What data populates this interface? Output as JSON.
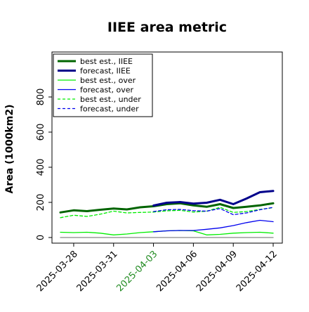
{
  "chart_data": {
    "type": "line",
    "title": "IIEE area metric",
    "xlabel": "",
    "ylabel": "Area (1000km2)",
    "ylim": [
      0,
      1000
    ],
    "yticks": [
      0,
      200,
      400,
      600,
      800
    ],
    "x": [
      "2025-03-27",
      "2025-03-28",
      "2025-03-29",
      "2025-03-30",
      "2025-03-31",
      "2025-04-01",
      "2025-04-02",
      "2025-04-03",
      "2025-04-04",
      "2025-04-05",
      "2025-04-06",
      "2025-04-07",
      "2025-04-08",
      "2025-04-09",
      "2025-04-10",
      "2025-04-11",
      "2025-04-12"
    ],
    "xtick_labels": [
      "2025-03-28",
      "2025-03-31",
      "2025-04-03",
      "2025-04-06",
      "2025-04-09",
      "2025-04-12"
    ],
    "highlighted_tick": "2025-04-03",
    "legend_position": "upper-left",
    "series": [
      {
        "name": "best est., IIEE",
        "color": "#006400",
        "style": "solid",
        "width": 3,
        "x": [
          "2025-03-27",
          "2025-03-28",
          "2025-03-29",
          "2025-03-30",
          "2025-03-31",
          "2025-04-01",
          "2025-04-02",
          "2025-04-03",
          "2025-04-04",
          "2025-04-05",
          "2025-04-06",
          "2025-04-07",
          "2025-04-08",
          "2025-04-09",
          "2025-04-10",
          "2025-04-11",
          "2025-04-12"
        ],
        "values": [
          143,
          155,
          150,
          158,
          165,
          160,
          172,
          178,
          190,
          195,
          183,
          175,
          190,
          168,
          175,
          183,
          195
        ]
      },
      {
        "name": "forecast, IIEE",
        "color": "#00008b",
        "style": "solid",
        "width": 3,
        "x": [
          "2025-04-03",
          "2025-04-04",
          "2025-04-05",
          "2025-04-06",
          "2025-04-07",
          "2025-04-08",
          "2025-04-09",
          "2025-04-10",
          "2025-04-11",
          "2025-04-12"
        ],
        "values": [
          182,
          198,
          202,
          193,
          198,
          215,
          190,
          222,
          258,
          265
        ]
      },
      {
        "name": "best est., over",
        "color": "#00ee00",
        "style": "solid",
        "width": 1.3,
        "x": [
          "2025-03-27",
          "2025-03-28",
          "2025-03-29",
          "2025-03-30",
          "2025-03-31",
          "2025-04-01",
          "2025-04-02",
          "2025-04-03",
          "2025-04-04",
          "2025-04-05",
          "2025-04-06",
          "2025-04-07",
          "2025-04-08",
          "2025-04-09",
          "2025-04-10",
          "2025-04-11",
          "2025-04-12"
        ],
        "values": [
          30,
          28,
          30,
          25,
          15,
          20,
          28,
          33,
          38,
          40,
          38,
          15,
          18,
          25,
          28,
          30,
          25
        ]
      },
      {
        "name": "forecast, over",
        "color": "#0000ee",
        "style": "solid",
        "width": 1.3,
        "x": [
          "2025-04-03",
          "2025-04-04",
          "2025-04-05",
          "2025-04-06",
          "2025-04-07",
          "2025-04-08",
          "2025-04-09",
          "2025-04-10",
          "2025-04-11",
          "2025-04-12"
        ],
        "values": [
          33,
          38,
          40,
          40,
          47,
          55,
          68,
          85,
          98,
          90
        ]
      },
      {
        "name": "best est., under",
        "color": "#00ee00",
        "style": "dashed",
        "width": 1.3,
        "x": [
          "2025-03-27",
          "2025-03-28",
          "2025-03-29",
          "2025-03-30",
          "2025-03-31",
          "2025-04-01",
          "2025-04-02",
          "2025-04-03",
          "2025-04-04",
          "2025-04-05",
          "2025-04-06",
          "2025-04-07",
          "2025-04-08",
          "2025-04-09",
          "2025-04-10",
          "2025-04-11",
          "2025-04-12"
        ],
        "values": [
          113,
          127,
          120,
          133,
          150,
          140,
          143,
          145,
          152,
          155,
          145,
          150,
          172,
          143,
          148,
          160,
          170
        ]
      },
      {
        "name": "forecast, under",
        "color": "#0000ee",
        "style": "dashed",
        "width": 1.3,
        "x": [
          "2025-04-03",
          "2025-04-04",
          "2025-04-05",
          "2025-04-06",
          "2025-04-07",
          "2025-04-08",
          "2025-04-09",
          "2025-04-10",
          "2025-04-11",
          "2025-04-12"
        ],
        "values": [
          148,
          158,
          160,
          153,
          150,
          165,
          130,
          140,
          158,
          172
        ]
      },
      {
        "name": "",
        "color": "#888888",
        "style": "solid",
        "width": 1.3,
        "x": [
          "2025-03-27",
          "2025-04-12"
        ],
        "values": [
          0,
          0
        ]
      }
    ],
    "colors": {
      "axis": "#000000",
      "tick_label": "#000000",
      "highlight_tick": "#228b22"
    }
  }
}
